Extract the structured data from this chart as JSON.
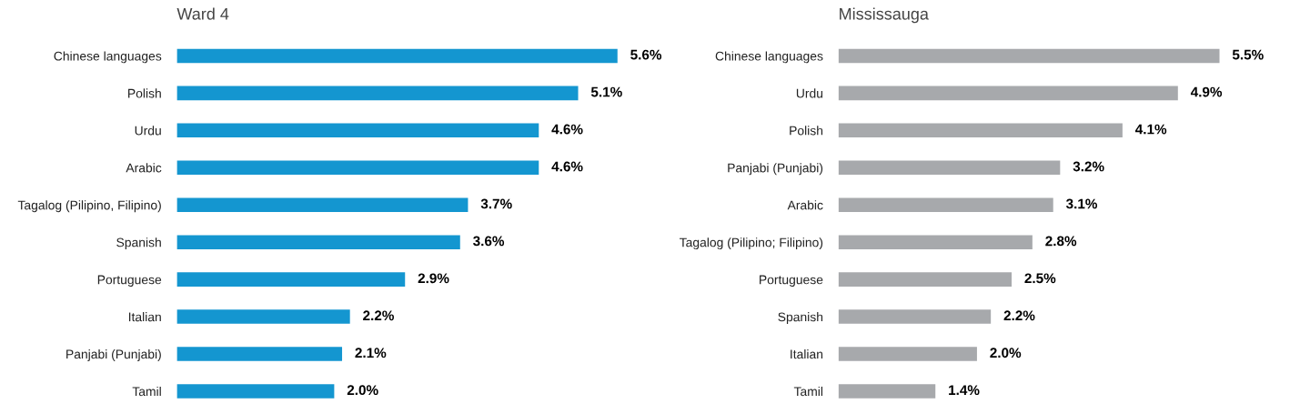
{
  "chart_data": [
    {
      "type": "bar",
      "orientation": "horizontal",
      "title": "Ward 4",
      "tick_labels": "y",
      "categories": [
        "Chinese languages",
        "Polish",
        "Urdu",
        "Arabic",
        "Tagalog (Pilipino, Filipino)",
        "Spanish",
        "Portuguese",
        "Italian",
        "Panjabi (Punjabi)",
        "Tamil"
      ],
      "values": [
        5.6,
        5.1,
        4.6,
        4.6,
        3.7,
        3.6,
        2.9,
        2.2,
        2.1,
        2.0
      ],
      "value_labels": [
        "5.6%",
        "5.1%",
        "4.6%",
        "4.6%",
        "3.7%",
        "3.6%",
        "2.9%",
        "2.2%",
        "2.1%",
        "2.0%"
      ],
      "color": "#1496d0"
    },
    {
      "type": "bar",
      "orientation": "horizontal",
      "title": "Mississauga",
      "tick_labels": "y",
      "categories": [
        "Chinese languages",
        "Urdu",
        "Polish",
        "Panjabi (Punjabi)",
        "Arabic",
        "Tagalog (Pilipino; Filipino)",
        "Portuguese",
        "Spanish",
        "Italian",
        "Tamil"
      ],
      "values": [
        5.5,
        4.9,
        4.1,
        3.2,
        3.1,
        2.8,
        2.5,
        2.2,
        2.0,
        1.4
      ],
      "value_labels": [
        "5.5%",
        "4.9%",
        "4.1%",
        "3.2%",
        "3.1%",
        "2.8%",
        "2.5%",
        "2.2%",
        "2.0%",
        "1.4%"
      ],
      "color": "#a7a9ac"
    }
  ]
}
